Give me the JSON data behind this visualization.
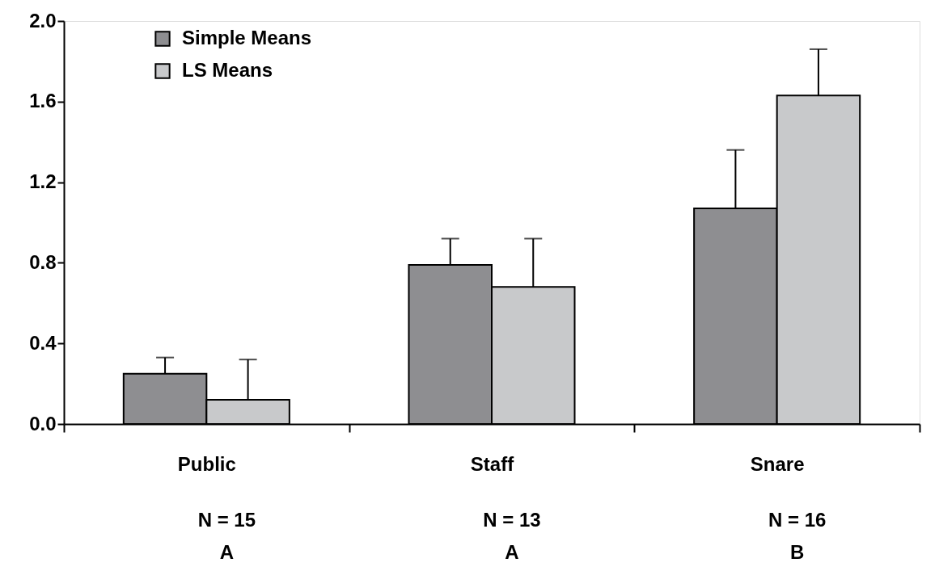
{
  "chart_data": {
    "type": "bar",
    "categories": [
      "Public",
      "Staff",
      "Snare"
    ],
    "series": [
      {
        "name": "Simple Means",
        "color": "#8e8e91",
        "values": [
          0.25,
          0.79,
          1.07
        ],
        "errors": [
          [
            0.25,
            0.33
          ],
          [
            0.79,
            0.92
          ],
          [
            1.07,
            1.36
          ]
        ]
      },
      {
        "name": "LS Means",
        "color": "#c8c9cb",
        "values": [
          0.12,
          0.68,
          1.63
        ],
        "errors": [
          [
            0.12,
            0.32
          ],
          [
            0.68,
            0.92
          ],
          [
            1.63,
            1.86
          ]
        ]
      }
    ],
    "ylim": [
      0,
      2.0
    ],
    "yticks": [
      {
        "value": 0,
        "label": "0.0"
      },
      {
        "value": 0.4,
        "label": "0.4"
      },
      {
        "value": 0.8,
        "label": "0.8"
      },
      {
        "value": 1.2,
        "label": "1.2"
      },
      {
        "value": 1.6,
        "label": "1.6"
      },
      {
        "value": 2,
        "label": "2.0"
      }
    ],
    "annotations": [
      "N = 15",
      "A",
      "N = 13",
      "A",
      "N = 16",
      "B"
    ],
    "legend": "top left",
    "grid": false
  }
}
